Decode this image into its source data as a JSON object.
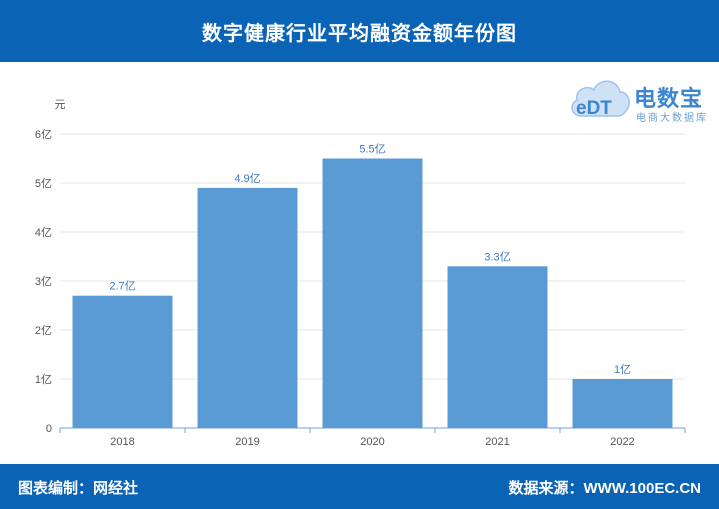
{
  "header": {
    "title": "数字健康行业平均融资金额年份图"
  },
  "footer": {
    "left_text": "图表编制：网经社",
    "right_text": "数据来源：WWW.100EC.CN"
  },
  "logo": {
    "brand": "电数宝",
    "tagline": "电商大数据库",
    "mark_text": "eDT",
    "color": "#3a86cf"
  },
  "colors": {
    "header_bg": "#0b63b6",
    "bar": "#5b9bd5",
    "label": "#3a78c2",
    "axis_text": "#555555"
  },
  "chart_data": {
    "type": "bar",
    "title": "数字健康行业平均融资金额年份图",
    "ylabel": "元",
    "xlabel": "",
    "categories": [
      "2018",
      "2019",
      "2020",
      "2021",
      "2022"
    ],
    "values": [
      2.7,
      4.9,
      5.5,
      3.3,
      1
    ],
    "data_labels": [
      "2.7亿",
      "4.9亿",
      "5.5亿",
      "3.3亿",
      "1亿"
    ],
    "ylim": [
      0,
      6
    ],
    "yticks": [
      {
        "value": 0,
        "label": "0"
      },
      {
        "value": 1,
        "label": "1亿"
      },
      {
        "value": 2,
        "label": "2亿"
      },
      {
        "value": 3,
        "label": "3亿"
      },
      {
        "value": 4,
        "label": "4亿"
      },
      {
        "value": 5,
        "label": "5亿"
      },
      {
        "value": 6,
        "label": "6亿"
      }
    ],
    "grid": true
  }
}
